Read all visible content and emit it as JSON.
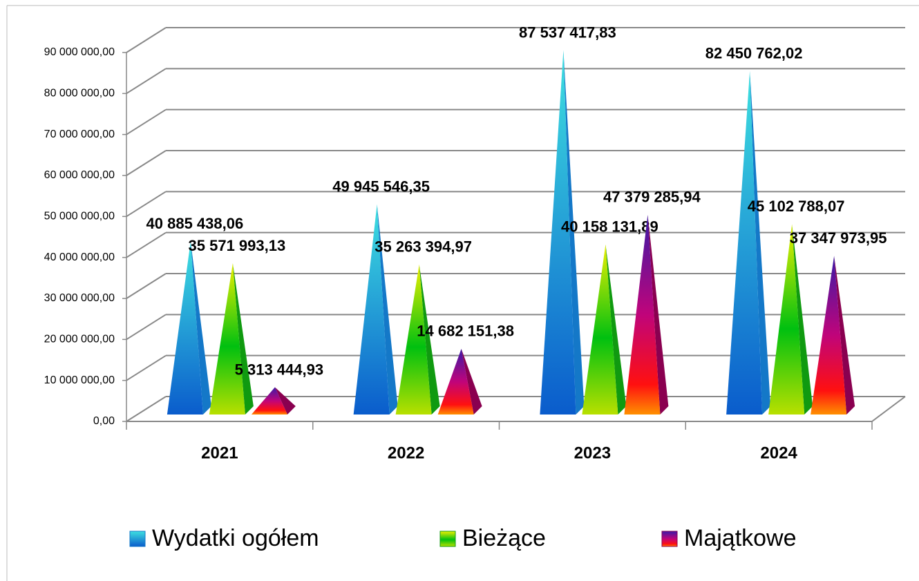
{
  "chart_data": {
    "type": "pyramid",
    "categories": [
      "2021",
      "2022",
      "2023",
      "2024"
    ],
    "series": [
      {
        "name": "Wydatki ogółem",
        "color": "#1478c8",
        "values": [
          40885438.06,
          49945546.35,
          87537417.83,
          82450762.02
        ],
        "value_labels": [
          "40 885 438,06",
          "49 945 546,35",
          "87 537 417,83",
          "82 450 762,02"
        ]
      },
      {
        "name": "Bieżące",
        "color": "#109a10",
        "values": [
          35571993.13,
          35263394.97,
          40158131.89,
          45102788.07
        ],
        "value_labels": [
          "35 571 993,13",
          "35 263 394,97",
          "40 158 131,89",
          "45 102 788,07"
        ]
      },
      {
        "name": "Majątkowe",
        "color": "#8a0050",
        "values": [
          5313444.93,
          14682151.38,
          47379285.94,
          37347973.95
        ],
        "value_labels": [
          "5 313 444,93",
          "14 682 151,38",
          "47 379 285,94",
          "37 347 973,95"
        ]
      }
    ],
    "ylim": [
      0,
      90000000
    ],
    "yticks": [
      {
        "value": 0,
        "label": "0,00"
      },
      {
        "value": 10000000,
        "label": "10 000 000,00"
      },
      {
        "value": 20000000,
        "label": "20 000 000,00"
      },
      {
        "value": 30000000,
        "label": "30 000 000,00"
      },
      {
        "value": 40000000,
        "label": "40 000 000,00"
      },
      {
        "value": 50000000,
        "label": "50 000 000,00"
      },
      {
        "value": 60000000,
        "label": "60 000 000,00"
      },
      {
        "value": 70000000,
        "label": "70 000 000,00"
      },
      {
        "value": 80000000,
        "label": "80 000 000,00"
      },
      {
        "value": 90000000,
        "label": "90 000 000,00"
      }
    ],
    "grid": true,
    "legend": "bottom"
  }
}
